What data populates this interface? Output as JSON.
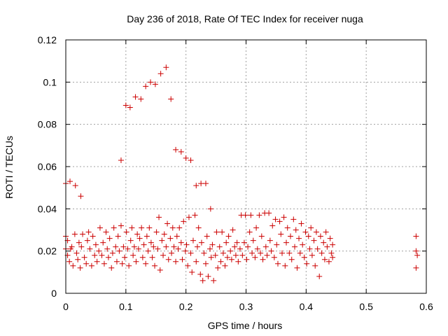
{
  "chart_data": {
    "type": "scatter",
    "title": "Day 236 of 2018, Rate Of TEC Index for receiver nuga",
    "xlabel": "GPS time / hours",
    "ylabel": "ROTI / TECUs",
    "xlim": [
      0,
      0.6
    ],
    "ylim": [
      0,
      0.12
    ],
    "x_ticks": [
      "0",
      "0.1",
      "0.2",
      "0.3",
      "0.4",
      "0.5",
      "0.6"
    ],
    "y_ticks": [
      "0",
      "0.02",
      "0.04",
      "0.06",
      "0.08",
      "0.1",
      "0.12"
    ],
    "grid": true,
    "marker": "+",
    "color": "#cc0000",
    "points": [
      [
        0.0,
        0.052
      ],
      [
        0.007,
        0.053
      ],
      [
        0.016,
        0.051
      ],
      [
        0.025,
        0.046
      ],
      [
        0.092,
        0.063
      ],
      [
        0.1,
        0.089
      ],
      [
        0.107,
        0.088
      ],
      [
        0.116,
        0.093
      ],
      [
        0.125,
        0.092
      ],
      [
        0.133,
        0.098
      ],
      [
        0.141,
        0.1
      ],
      [
        0.149,
        0.099
      ],
      [
        0.158,
        0.104
      ],
      [
        0.167,
        0.107
      ],
      [
        0.175,
        0.092
      ],
      [
        0.183,
        0.068
      ],
      [
        0.192,
        0.067
      ],
      [
        0.2,
        0.064
      ],
      [
        0.208,
        0.063
      ],
      [
        0.217,
        0.051
      ],
      [
        0.225,
        0.052
      ],
      [
        0.233,
        0.052
      ],
      [
        0.241,
        0.04
      ],
      [
        0.0,
        0.021
      ],
      [
        0.0,
        0.027
      ],
      [
        0.003,
        0.025
      ],
      [
        0.003,
        0.018
      ],
      [
        0.006,
        0.015
      ],
      [
        0.008,
        0.021
      ],
      [
        0.01,
        0.022
      ],
      [
        0.012,
        0.013
      ],
      [
        0.015,
        0.028
      ],
      [
        0.018,
        0.019
      ],
      [
        0.02,
        0.016
      ],
      [
        0.022,
        0.024
      ],
      [
        0.024,
        0.012
      ],
      [
        0.026,
        0.022
      ],
      [
        0.028,
        0.028
      ],
      [
        0.031,
        0.017
      ],
      [
        0.034,
        0.014
      ],
      [
        0.036,
        0.025
      ],
      [
        0.038,
        0.029
      ],
      [
        0.04,
        0.021
      ],
      [
        0.043,
        0.013
      ],
      [
        0.045,
        0.027
      ],
      [
        0.048,
        0.018
      ],
      [
        0.05,
        0.023
      ],
      [
        0.052,
        0.015
      ],
      [
        0.055,
        0.02
      ],
      [
        0.057,
        0.031
      ],
      [
        0.06,
        0.018
      ],
      [
        0.062,
        0.024
      ],
      [
        0.064,
        0.014
      ],
      [
        0.067,
        0.029
      ],
      [
        0.069,
        0.021
      ],
      [
        0.071,
        0.017
      ],
      [
        0.073,
        0.026
      ],
      [
        0.076,
        0.012
      ],
      [
        0.078,
        0.019
      ],
      [
        0.08,
        0.031
      ],
      [
        0.083,
        0.022
      ],
      [
        0.085,
        0.015
      ],
      [
        0.087,
        0.027
      ],
      [
        0.089,
        0.02
      ],
      [
        0.092,
        0.032
      ],
      [
        0.094,
        0.014
      ],
      [
        0.096,
        0.022
      ],
      [
        0.098,
        0.017
      ],
      [
        0.101,
        0.029
      ],
      [
        0.103,
        0.021
      ],
      [
        0.105,
        0.013
      ],
      [
        0.108,
        0.025
      ],
      [
        0.11,
        0.031
      ],
      [
        0.112,
        0.018
      ],
      [
        0.114,
        0.022
      ],
      [
        0.117,
        0.015
      ],
      [
        0.119,
        0.028
      ],
      [
        0.121,
        0.021
      ],
      [
        0.123,
        0.026
      ],
      [
        0.126,
        0.031
      ],
      [
        0.128,
        0.017
      ],
      [
        0.13,
        0.023
      ],
      [
        0.133,
        0.014
      ],
      [
        0.135,
        0.027
      ],
      [
        0.137,
        0.02
      ],
      [
        0.139,
        0.031
      ],
      [
        0.142,
        0.024
      ],
      [
        0.144,
        0.017
      ],
      [
        0.146,
        0.022
      ],
      [
        0.148,
        0.013
      ],
      [
        0.151,
        0.029
      ],
      [
        0.153,
        0.021
      ],
      [
        0.155,
        0.036
      ],
      [
        0.157,
        0.011
      ],
      [
        0.16,
        0.025
      ],
      [
        0.162,
        0.018
      ],
      [
        0.164,
        0.028
      ],
      [
        0.167,
        0.022
      ],
      [
        0.169,
        0.033
      ],
      [
        0.171,
        0.016
      ],
      [
        0.174,
        0.026
      ],
      [
        0.176,
        0.019
      ],
      [
        0.178,
        0.031
      ],
      [
        0.18,
        0.022
      ],
      [
        0.183,
        0.015
      ],
      [
        0.185,
        0.027
      ],
      [
        0.187,
        0.021
      ],
      [
        0.189,
        0.031
      ],
      [
        0.192,
        0.024
      ],
      [
        0.194,
        0.016
      ],
      [
        0.196,
        0.034
      ],
      [
        0.199,
        0.02
      ],
      [
        0.201,
        0.023
      ],
      [
        0.203,
        0.013
      ],
      [
        0.205,
        0.036
      ],
      [
        0.208,
        0.019
      ],
      [
        0.21,
        0.01
      ],
      [
        0.212,
        0.025
      ],
      [
        0.215,
        0.037
      ],
      [
        0.217,
        0.015
      ],
      [
        0.219,
        0.022
      ],
      [
        0.221,
        0.031
      ],
      [
        0.224,
        0.009
      ],
      [
        0.226,
        0.024
      ],
      [
        0.228,
        0.006
      ],
      [
        0.23,
        0.019
      ],
      [
        0.233,
        0.014
      ],
      [
        0.235,
        0.027
      ],
      [
        0.237,
        0.008
      ],
      [
        0.24,
        0.021
      ],
      [
        0.242,
        0.017
      ],
      [
        0.244,
        0.023
      ],
      [
        0.246,
        0.006
      ],
      [
        0.249,
        0.018
      ],
      [
        0.251,
        0.029
      ],
      [
        0.253,
        0.012
      ],
      [
        0.256,
        0.022
      ],
      [
        0.258,
        0.015
      ],
      [
        0.26,
        0.029
      ],
      [
        0.262,
        0.019
      ],
      [
        0.265,
        0.013
      ],
      [
        0.267,
        0.024
      ],
      [
        0.269,
        0.017
      ],
      [
        0.271,
        0.027
      ],
      [
        0.274,
        0.02
      ],
      [
        0.276,
        0.016
      ],
      [
        0.278,
        0.03
      ],
      [
        0.281,
        0.022
      ],
      [
        0.283,
        0.018
      ],
      [
        0.285,
        0.024
      ],
      [
        0.287,
        0.015
      ],
      [
        0.29,
        0.021
      ],
      [
        0.292,
        0.037
      ],
      [
        0.294,
        0.018
      ],
      [
        0.297,
        0.024
      ],
      [
        0.299,
        0.037
      ],
      [
        0.301,
        0.016
      ],
      [
        0.303,
        0.022
      ],
      [
        0.306,
        0.029
      ],
      [
        0.308,
        0.037
      ],
      [
        0.31,
        0.019
      ],
      [
        0.312,
        0.025
      ],
      [
        0.315,
        0.017
      ],
      [
        0.317,
        0.031
      ],
      [
        0.319,
        0.021
      ],
      [
        0.322,
        0.037
      ],
      [
        0.324,
        0.019
      ],
      [
        0.326,
        0.027
      ],
      [
        0.328,
        0.016
      ],
      [
        0.331,
        0.038
      ],
      [
        0.333,
        0.022
      ],
      [
        0.335,
        0.018
      ],
      [
        0.338,
        0.038
      ],
      [
        0.34,
        0.025
      ],
      [
        0.342,
        0.02
      ],
      [
        0.344,
        0.032
      ],
      [
        0.347,
        0.017
      ],
      [
        0.349,
        0.035
      ],
      [
        0.351,
        0.023
      ],
      [
        0.353,
        0.014
      ],
      [
        0.356,
        0.034
      ],
      [
        0.358,
        0.028
      ],
      [
        0.36,
        0.019
      ],
      [
        0.363,
        0.036
      ],
      [
        0.365,
        0.013
      ],
      [
        0.367,
        0.024
      ],
      [
        0.369,
        0.031
      ],
      [
        0.372,
        0.019
      ],
      [
        0.374,
        0.027
      ],
      [
        0.376,
        0.016
      ],
      [
        0.379,
        0.035
      ],
      [
        0.381,
        0.022
      ],
      [
        0.383,
        0.03
      ],
      [
        0.385,
        0.012
      ],
      [
        0.388,
        0.026
      ],
      [
        0.39,
        0.019
      ],
      [
        0.392,
        0.033
      ],
      [
        0.394,
        0.023
      ],
      [
        0.397,
        0.017
      ],
      [
        0.399,
        0.029
      ],
      [
        0.401,
        0.014
      ],
      [
        0.404,
        0.027
      ],
      [
        0.406,
        0.021
      ],
      [
        0.408,
        0.031
      ],
      [
        0.41,
        0.018
      ],
      [
        0.413,
        0.025
      ],
      [
        0.415,
        0.013
      ],
      [
        0.417,
        0.029
      ],
      [
        0.419,
        0.021
      ],
      [
        0.422,
        0.008
      ],
      [
        0.424,
        0.027
      ],
      [
        0.426,
        0.019
      ],
      [
        0.429,
        0.024
      ],
      [
        0.431,
        0.016
      ],
      [
        0.433,
        0.029
      ],
      [
        0.435,
        0.022
      ],
      [
        0.438,
        0.015
      ],
      [
        0.44,
        0.026
      ],
      [
        0.442,
        0.019
      ],
      [
        0.444,
        0.023
      ],
      [
        0.444,
        0.017
      ],
      [
        0.583,
        0.027
      ],
      [
        0.583,
        0.02
      ],
      [
        0.583,
        0.012
      ],
      [
        0.585,
        0.018
      ]
    ]
  }
}
